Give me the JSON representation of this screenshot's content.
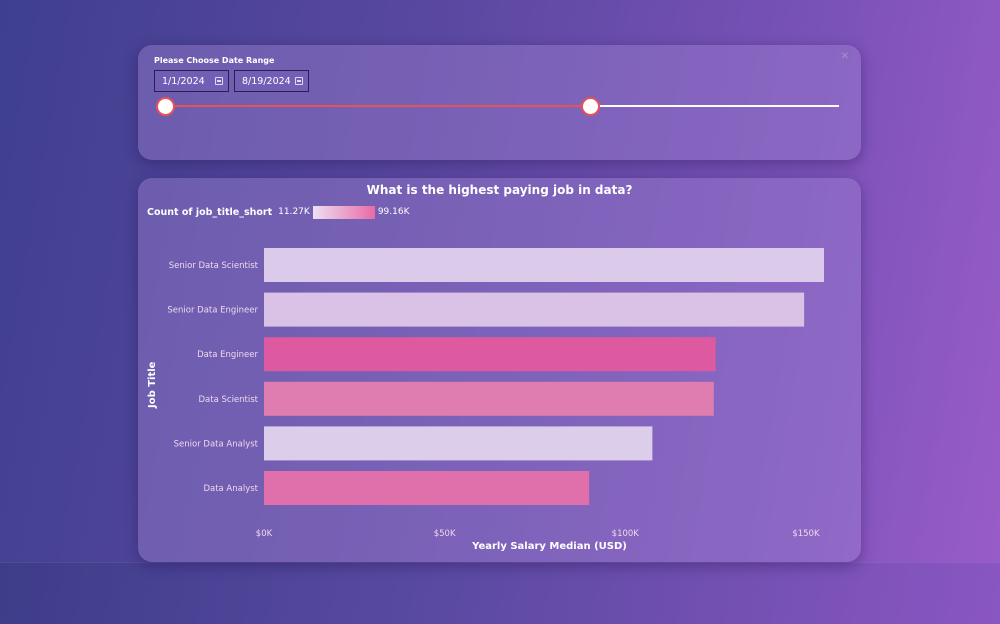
{
  "slicer": {
    "title": "Please Choose Date Range",
    "start_date": "1/1/2024",
    "end_date": "8/19/2024",
    "range_fraction": [
      0.0,
      0.632
    ]
  },
  "chart_data": {
    "type": "bar",
    "orientation": "horizontal",
    "title": "What is the highest paying job in data?",
    "xlabel": "Yearly Salary Median (USD)",
    "ylabel": "Job Title",
    "xlim": [
      0,
      155000
    ],
    "xticks": [
      {
        "value": 0,
        "label": "$0K"
      },
      {
        "value": 50000,
        "label": "$50K"
      },
      {
        "value": 100000,
        "label": "$100K"
      },
      {
        "value": 150000,
        "label": "$150K"
      }
    ],
    "categories": [
      "Senior Data Scientist",
      "Senior Data Engineer",
      "Data Engineer",
      "Data Scientist",
      "Senior Data Analyst",
      "Data Analyst"
    ],
    "values": [
      155000,
      149500,
      125000,
      124500,
      107500,
      90000
    ],
    "color_legend": {
      "title": "Count of job_title_short",
      "min_label": "11.27K",
      "max_label": "99.16K"
    },
    "bar_colors": [
      "#dccaea",
      "#dac2e6",
      "#dd5aa0",
      "#df7db0",
      "#dccdeb",
      "#df70ac"
    ]
  }
}
